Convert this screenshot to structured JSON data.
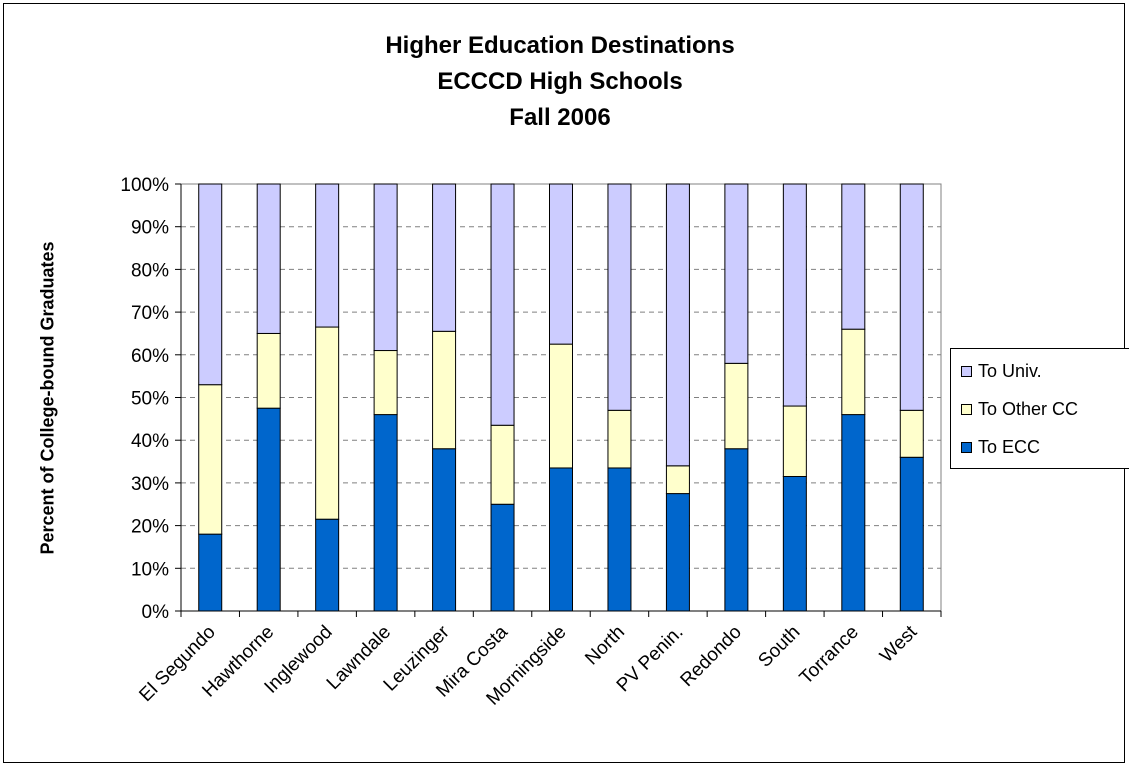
{
  "chart_data": {
    "type": "bar",
    "stacked": true,
    "title": [
      "Higher Education Destinations",
      "ECCCD High Schools",
      "Fall 2006"
    ],
    "xlabel": "",
    "ylabel": "Percent of College-bound Graduates",
    "ylim": [
      0,
      100
    ],
    "yticks": [
      "0%",
      "10%",
      "20%",
      "30%",
      "40%",
      "50%",
      "60%",
      "70%",
      "80%",
      "90%",
      "100%"
    ],
    "grid": "horizontal dashed",
    "legend_position": "right",
    "categories": [
      "El Segundo",
      "Hawthorne",
      "Inglewood",
      "Lawndale",
      "Leuzinger",
      "Mira Costa",
      "Morningside",
      "North",
      "PV Penin.",
      "Redondo",
      "South",
      "Torrance",
      "West"
    ],
    "series": [
      {
        "name": "To ECC",
        "color": "#0066CC",
        "values": [
          18,
          47.5,
          21.5,
          46,
          38,
          25,
          33.5,
          33.5,
          27.5,
          38,
          31.5,
          46,
          36
        ]
      },
      {
        "name": "To Other CC",
        "color": "#FFFFCC",
        "values": [
          35,
          17.5,
          45,
          15,
          27.5,
          18.5,
          29,
          13.5,
          6.5,
          20,
          16.5,
          20,
          11
        ]
      },
      {
        "name": "To Univ.",
        "color": "#CCCCFF",
        "values": [
          47,
          35,
          33.5,
          39,
          34.5,
          56.5,
          37.5,
          53,
          66,
          42,
          52,
          34,
          53
        ]
      }
    ],
    "legend_order": [
      "To Univ.",
      "To Other CC",
      "To ECC"
    ]
  }
}
